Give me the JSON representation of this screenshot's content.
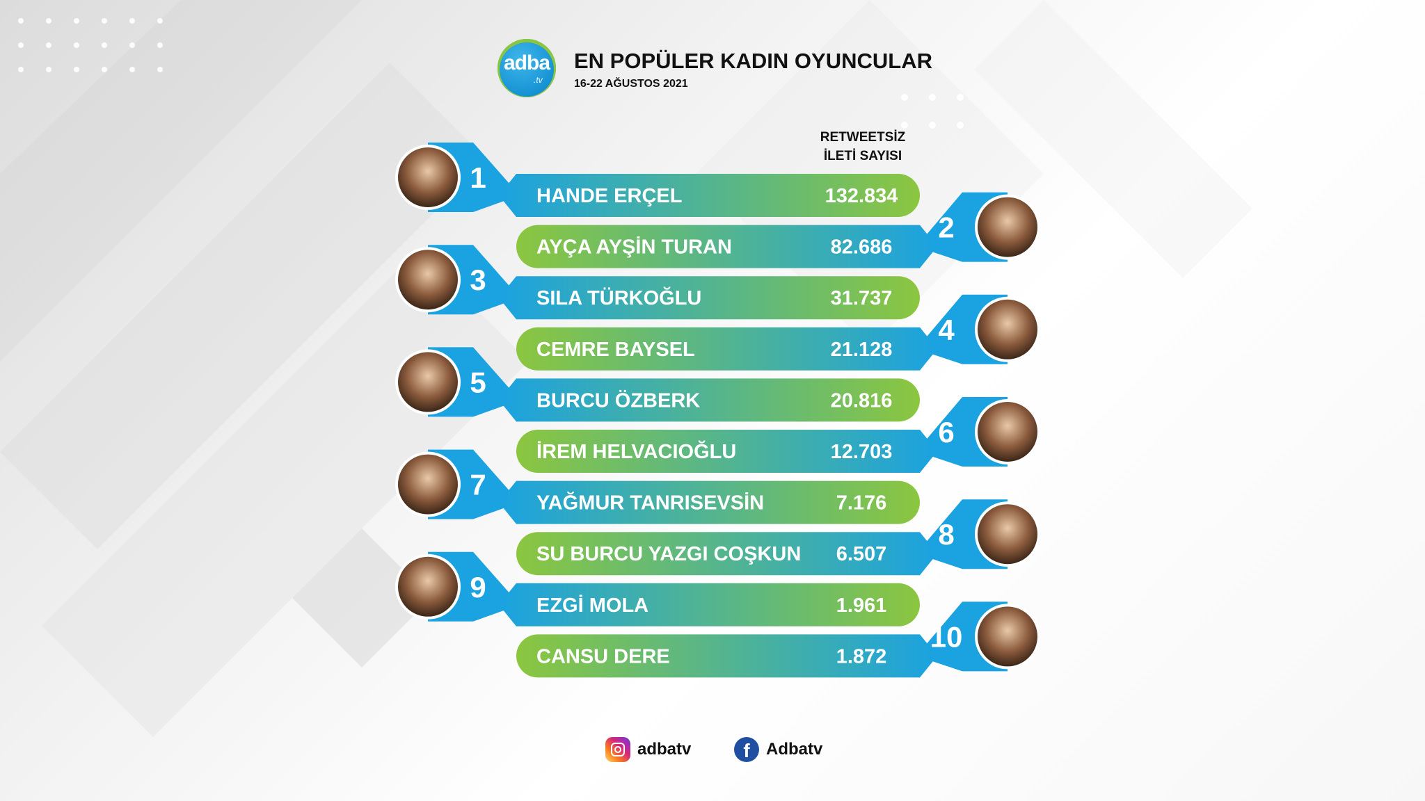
{
  "header": {
    "logo_text": "adba",
    "logo_suffix": ".tv",
    "title": "EN POPÜLER KADIN OYUNCULAR",
    "subtitle": "16-22 AĞUSTOS 2021",
    "column_title_line1": "RETWEETSİZ",
    "column_title_line2": "İLETİ SAYISI"
  },
  "chart_data": {
    "type": "bar",
    "title": "EN POPÜLER KADIN OYUNCULAR",
    "subtitle": "16-22 AĞUSTOS 2021",
    "ylabel": "RETWEETSİZ İLETİ SAYISI",
    "categories": [
      "HANDE ERÇEL",
      "AYÇA AYŞİN TURAN",
      "SILA TÜRKOĞLU",
      "CEMRE BAYSEL",
      "BURCU ÖZBERK",
      "İREM HELVACIOĞLU",
      "YAĞMUR TANRISEVSİN",
      "SU BURCU YAZGI COŞKUN",
      "EZGİ MOLA",
      "CANSU DERE"
    ],
    "ranks": [
      "1",
      "2",
      "3",
      "4",
      "5",
      "6",
      "7",
      "8",
      "9",
      "10"
    ],
    "values": [
      132834,
      82686,
      31737,
      21128,
      20816,
      12703,
      7176,
      6507,
      1961,
      1872
    ],
    "value_labels": [
      "132.834",
      "82.686",
      "31.737",
      "21.128",
      "20.816",
      "12.703",
      "7.176",
      "6.507",
      "1.961",
      "1.872"
    ]
  },
  "colors": {
    "blue": "#1aa2e1",
    "green": "#8cc63f",
    "text": "#ffffff"
  },
  "footer": {
    "instagram_icon": "instagram-icon",
    "instagram_label": "adbatv",
    "facebook_icon": "facebook-icon",
    "facebook_glyph": "f",
    "facebook_label": "Adbatv"
  }
}
